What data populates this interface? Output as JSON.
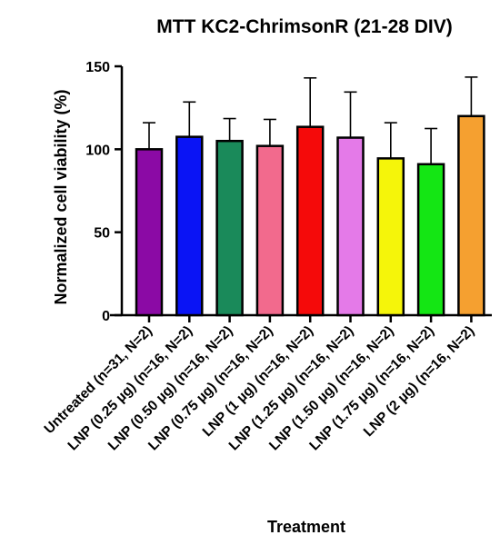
{
  "chart_data": {
    "type": "bar",
    "title": "MTT KC2-ChrimsonR (21-28 DIV)",
    "xlabel": "Treatment",
    "ylabel": "Normalized cell viability (%)",
    "ylim": [
      0,
      150
    ],
    "yticks": [
      0,
      50,
      100,
      150
    ],
    "grid": false,
    "categories": [
      "Untreated (n=31, N=2)",
      "LNP (0.25 µg) (n=16, N=2)",
      "LNP (0.50 µg) (n=16, N=2)",
      "LNP (0.75 µg) (n=16, N=2)",
      "LNP (1 µg) (n=16, N=2)",
      "LNP (1.25 µg) (n=16, N=2)",
      "LNP (1.50 µg) (n=16, N=2)",
      "LNP (1.75 µg) (n=16, N=2)",
      "LNP (2 µg) (n=16, N=2)"
    ],
    "values": [
      100,
      107.5,
      105,
      102,
      113.5,
      107,
      94.5,
      91,
      120
    ],
    "error_upper": [
      116,
      128.5,
      118.5,
      118,
      143,
      134.5,
      116,
      112.5,
      143.5
    ],
    "colors": [
      "#8b0aa5",
      "#0a14f5",
      "#1a8a5a",
      "#f26a8d",
      "#f50a0a",
      "#e47ae8",
      "#f5f50a",
      "#14e614",
      "#f5a030"
    ]
  }
}
